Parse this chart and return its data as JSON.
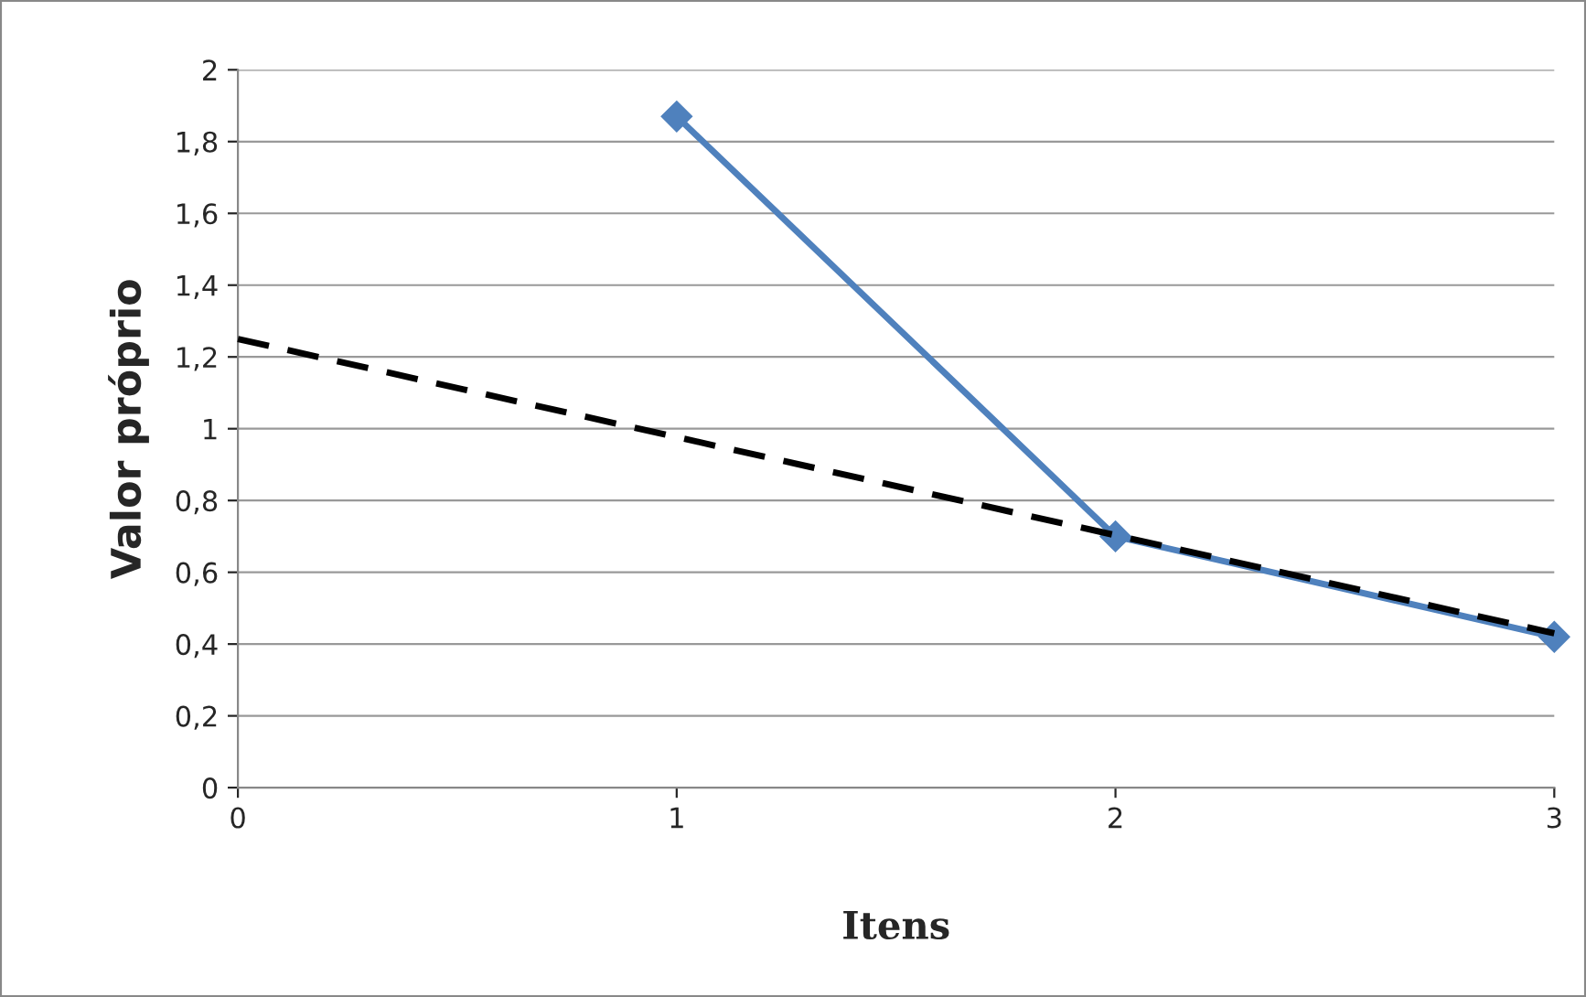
{
  "chart_data": {
    "type": "line",
    "xlabel": "Itens",
    "ylabel": "Valor próprio",
    "xlim": [
      0,
      3
    ],
    "xticks": [
      0,
      1,
      2,
      3
    ],
    "ylim": [
      0,
      2
    ],
    "yticks": [
      0,
      {
        "value": 0.2,
        "label": "0,2"
      },
      {
        "value": 0.4,
        "label": "0,4"
      },
      {
        "value": 0.6,
        "label": "0,6"
      },
      {
        "value": 0.8,
        "label": "0,8"
      },
      1,
      {
        "value": 1.2,
        "label": "1,2"
      },
      {
        "value": 1.4,
        "label": "1,4"
      },
      {
        "value": 1.6,
        "label": "1,6"
      },
      {
        "value": 1.8,
        "label": "1,8"
      },
      2
    ],
    "grid": "y",
    "series": [
      {
        "color": "#4f81bd",
        "x": [
          1,
          2,
          3
        ],
        "values": [
          1.87,
          0.7,
          0.42
        ],
        "marker": "diamond",
        "line_style": "solid"
      },
      {
        "color": "#000000",
        "x": [
          0,
          3
        ],
        "values": [
          1.25,
          0.43
        ],
        "marker": "none",
        "line_style": "dashed"
      }
    ]
  }
}
